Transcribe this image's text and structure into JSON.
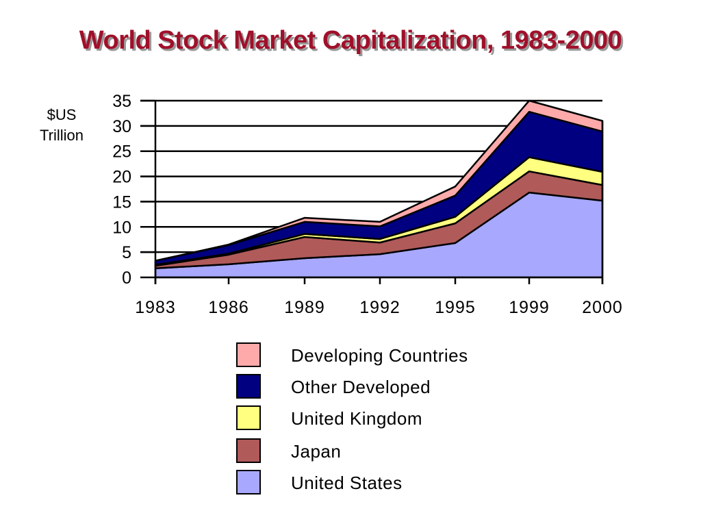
{
  "chart_data": {
    "type": "area",
    "stacked": true,
    "title": "World Stock Market Capitalization, 1983-2000",
    "ylabel": "$US Trillion",
    "xlabel": "",
    "categories": [
      "1983",
      "1986",
      "1989",
      "1992",
      "1995",
      "1999",
      "2000"
    ],
    "ylim": [
      0,
      35
    ],
    "yticks": [
      "0",
      "5",
      "10",
      "15",
      "20",
      "25",
      "30",
      "35"
    ],
    "grid": true,
    "legend_position": "bottom",
    "series": [
      {
        "name": "United States",
        "color": "#a8a8ff",
        "values": [
          1.8,
          2.6,
          3.8,
          4.6,
          6.8,
          16.8,
          15.2
        ]
      },
      {
        "name": "Japan",
        "color": "#b05a5a",
        "values": [
          0.5,
          1.9,
          4.2,
          2.3,
          3.9,
          4.2,
          3.1
        ]
      },
      {
        "name": "United Kingdom",
        "color": "#ffff80",
        "values": [
          0.2,
          0.2,
          0.6,
          0.7,
          1.3,
          2.8,
          2.6
        ]
      },
      {
        "name": "Other Developed",
        "color": "#000080",
        "values": [
          0.8,
          1.7,
          2.4,
          2.5,
          4.2,
          9.0,
          8.0
        ]
      },
      {
        "name": "Developing Countries",
        "color": "#ffaaaa",
        "values": [
          0.0,
          0.1,
          0.8,
          0.9,
          1.8,
          2.2,
          2.1
        ]
      }
    ]
  },
  "title_color": "#a0102a",
  "legend_order": [
    "Developing Countries",
    "Other Developed",
    "United Kingdom",
    "Japan",
    "United States"
  ]
}
